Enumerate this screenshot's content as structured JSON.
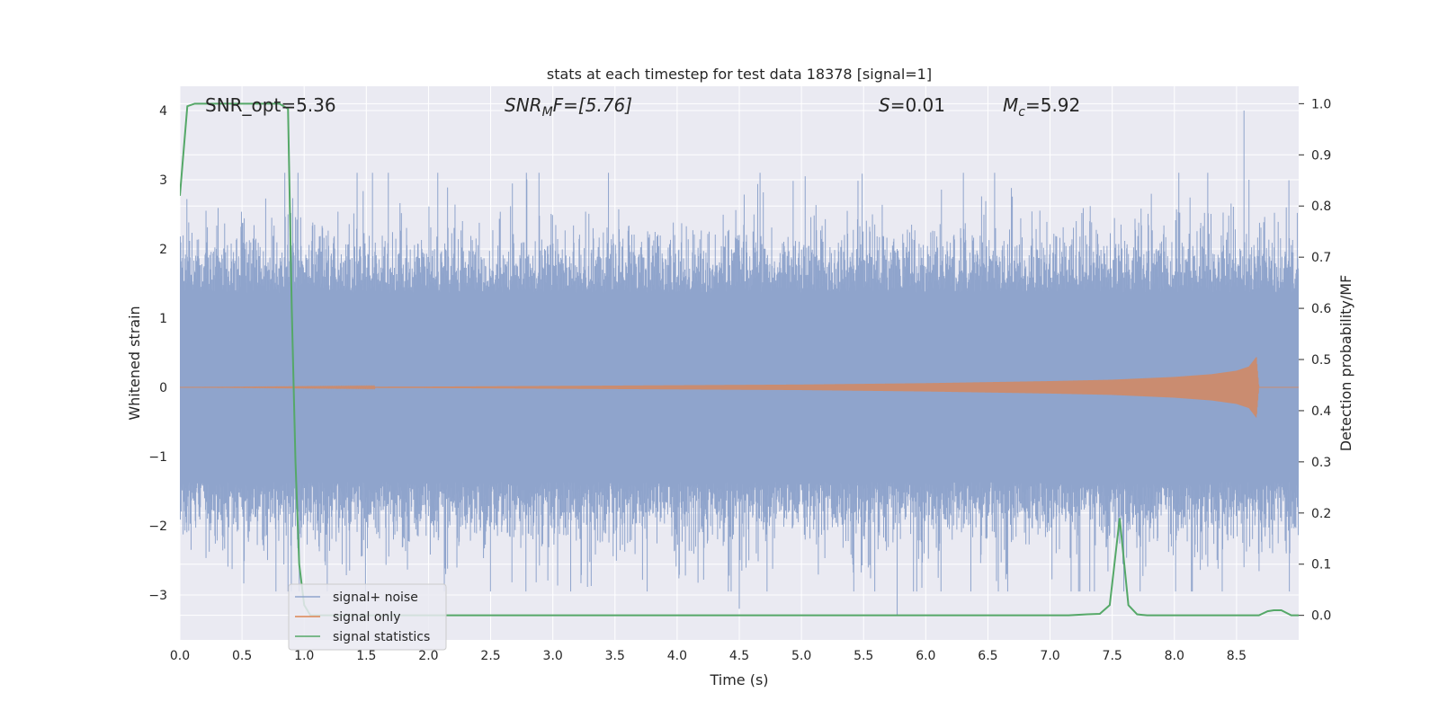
{
  "chart_data": {
    "type": "line",
    "title": "stats at each timestep for test data 18378 [signal=1]",
    "xlabel": "Time (s)",
    "ylabel_left": "Whitened strain",
    "ylabel_right": "Detection probability/MF",
    "xlim": [
      0.0,
      9.0
    ],
    "ylim_left": [
      -3.65,
      4.35
    ],
    "ylim_right": [
      -0.048,
      1.034
    ],
    "x_ticks": [
      "0.0",
      "0.5",
      "1.0",
      "1.5",
      "2.0",
      "2.5",
      "3.0",
      "3.5",
      "4.0",
      "4.5",
      "5.0",
      "5.5",
      "6.0",
      "6.5",
      "7.0",
      "7.5",
      "8.0",
      "8.5"
    ],
    "y_ticks_left": [
      "4",
      "3",
      "2",
      "1",
      "0",
      "−1",
      "−2",
      "−3"
    ],
    "y_ticks_right": [
      "1.0",
      "0.9",
      "0.8",
      "0.7",
      "0.6",
      "0.5",
      "0.4",
      "0.3",
      "0.2",
      "0.1",
      "0.0"
    ],
    "grid": true,
    "legend_placement": "lower-left",
    "annotations": {
      "snr_opt": "SNR_opt=5.36",
      "snr_mf_base": "SNR",
      "snr_mf_sub": "M",
      "snr_mf_rest": "F=[5.76]",
      "s_var": "S",
      "s_rest": "=0.01",
      "mc_base": "M",
      "mc_sub": "c",
      "mc_rest": "=5.92"
    },
    "colors": {
      "background": "#eaeaf2",
      "grid": "#ffffff",
      "signal_noise": "#8fa4cc",
      "signal_only": "#dd8452",
      "signal_statistics": "#55a868"
    },
    "series": [
      {
        "name": "signal+ noise",
        "axis": "left",
        "noise_envelope": {
          "typical_amplitude": 1.9,
          "peak_max": 4.0,
          "peak_min": -3.3
        }
      },
      {
        "name": "signal only",
        "axis": "left",
        "chirp_envelope": {
          "t": [
            0.0,
            2.0,
            4.0,
            5.0,
            6.0,
            7.0,
            7.5,
            8.0,
            8.3,
            8.5,
            8.6,
            8.66,
            8.68,
            9.0
          ],
          "amplitude": [
            0.0,
            0.01,
            0.03,
            0.04,
            0.06,
            0.09,
            0.11,
            0.15,
            0.19,
            0.24,
            0.3,
            0.44,
            0.0,
            0.0
          ]
        }
      },
      {
        "name": "signal statistics",
        "axis": "right",
        "x": [
          0.0,
          0.06,
          0.12,
          0.2,
          0.4,
          0.6,
          0.8,
          0.87,
          0.9,
          0.93,
          0.96,
          1.0,
          1.05,
          1.2,
          2.0,
          3.0,
          4.0,
          5.0,
          6.0,
          7.0,
          7.15,
          7.3,
          7.4,
          7.48,
          7.56,
          7.63,
          7.7,
          7.78,
          8.0,
          8.5,
          8.68,
          8.75,
          8.8,
          8.86,
          8.94,
          9.0
        ],
        "values": [
          0.82,
          0.995,
          1.0,
          1.0,
          1.0,
          1.0,
          1.0,
          0.99,
          0.6,
          0.3,
          0.1,
          0.02,
          0.0,
          0.0,
          0.0,
          0.0,
          0.0,
          0.0,
          0.0,
          0.0,
          0.0,
          0.002,
          0.003,
          0.02,
          0.19,
          0.02,
          0.002,
          0.0,
          0.0,
          0.0,
          0.0,
          0.008,
          0.01,
          0.01,
          0.0,
          0.0
        ]
      }
    ]
  }
}
